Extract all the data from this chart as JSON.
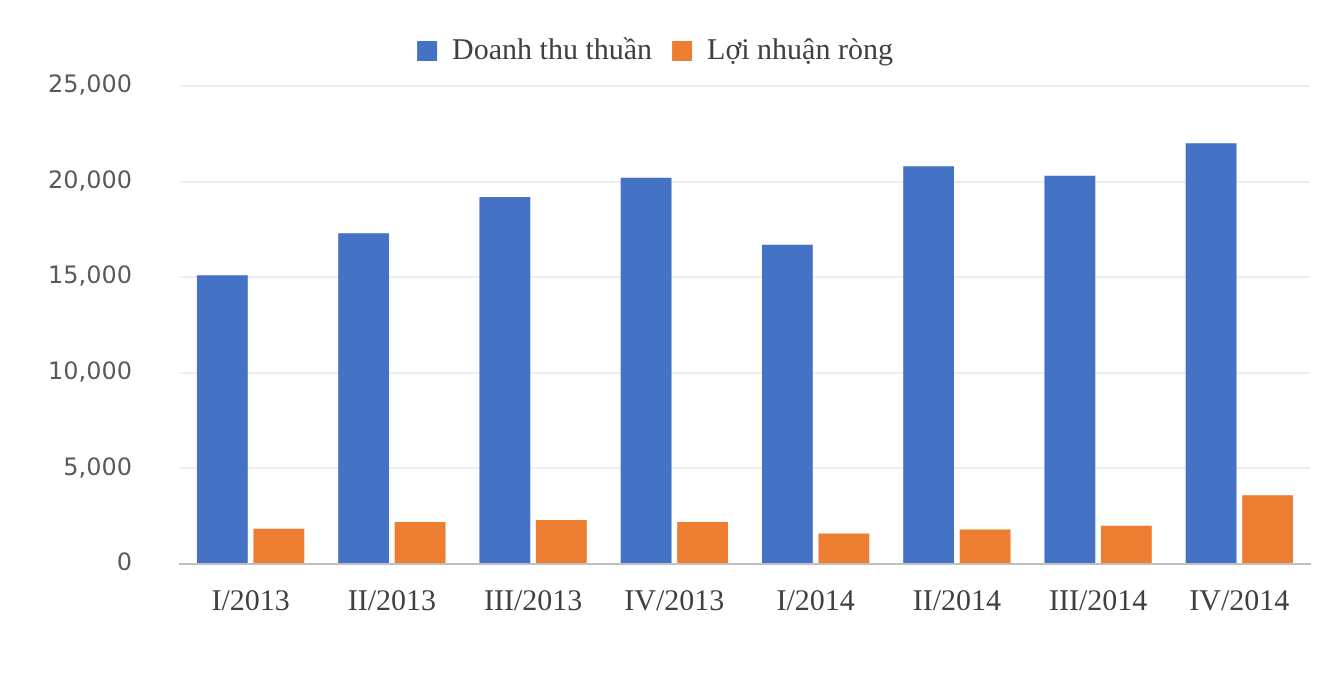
{
  "chart_data": {
    "type": "bar",
    "categories": [
      "I/2013",
      "II/2013",
      "III/2013",
      "IV/2013",
      "I/2014",
      "II/2014",
      "III/2014",
      "IV/2014"
    ],
    "series": [
      {
        "name": "Doanh thu thuần",
        "color": "#4472c4",
        "values": [
          15100,
          17300,
          19200,
          20200,
          16700,
          20800,
          20300,
          22000
        ]
      },
      {
        "name": "Lợi nhuận ròng",
        "color": "#ed7d31",
        "values": [
          1850,
          2200,
          2300,
          2200,
          1600,
          1800,
          2000,
          3600
        ]
      }
    ],
    "ylim": [
      0,
      25000
    ],
    "yticks": [
      {
        "value": 0,
        "label": "0"
      },
      {
        "value": 5000,
        "label": "5,000"
      },
      {
        "value": 10000,
        "label": "10,000"
      },
      {
        "value": 15000,
        "label": "15,000"
      },
      {
        "value": 20000,
        "label": "20,000"
      },
      {
        "value": 25000,
        "label": "25,000"
      }
    ],
    "grid": "y",
    "legend": "top"
  }
}
